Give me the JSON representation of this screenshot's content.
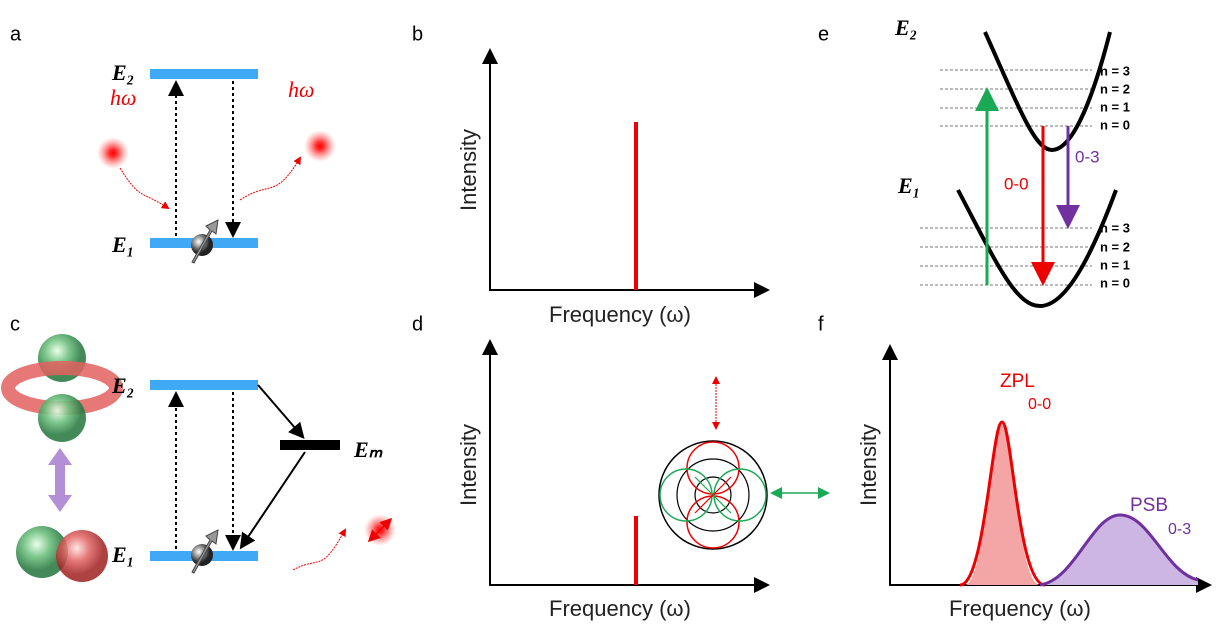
{
  "panel_labels": [
    "a",
    "b",
    "c",
    "d",
    "e",
    "f"
  ],
  "panel_a": {
    "upper_level": "E₂",
    "lower_level": "E₁",
    "photon_in": "hω",
    "photon_out": "hω"
  },
  "panel_b": {
    "y_axis": "Intensity",
    "x_axis": "Frequency (ω)"
  },
  "panel_c": {
    "upper_level": "E₂",
    "lower_level": "E₁",
    "metastable_level": "Eₘ"
  },
  "panel_d": {
    "y_axis": "Intensity",
    "x_axis": "Frequency (ω)"
  },
  "panel_e": {
    "upper_state": "E₂",
    "lower_state": "E₁",
    "upper_levels": [
      "n = 3",
      "n = 2",
      "n = 1",
      "n = 0"
    ],
    "lower_levels": [
      "n = 3",
      "n = 2",
      "n = 1",
      "n = 0"
    ],
    "zero_phonon": "0-0",
    "phonon_sideband": "0-3"
  },
  "panel_f": {
    "y_axis": "Intensity",
    "x_axis": "Frequency (ω)",
    "zpl": "ZPL",
    "zpl_transition": "0-0",
    "psb": "PSB",
    "psb_transition": "0-3"
  }
}
